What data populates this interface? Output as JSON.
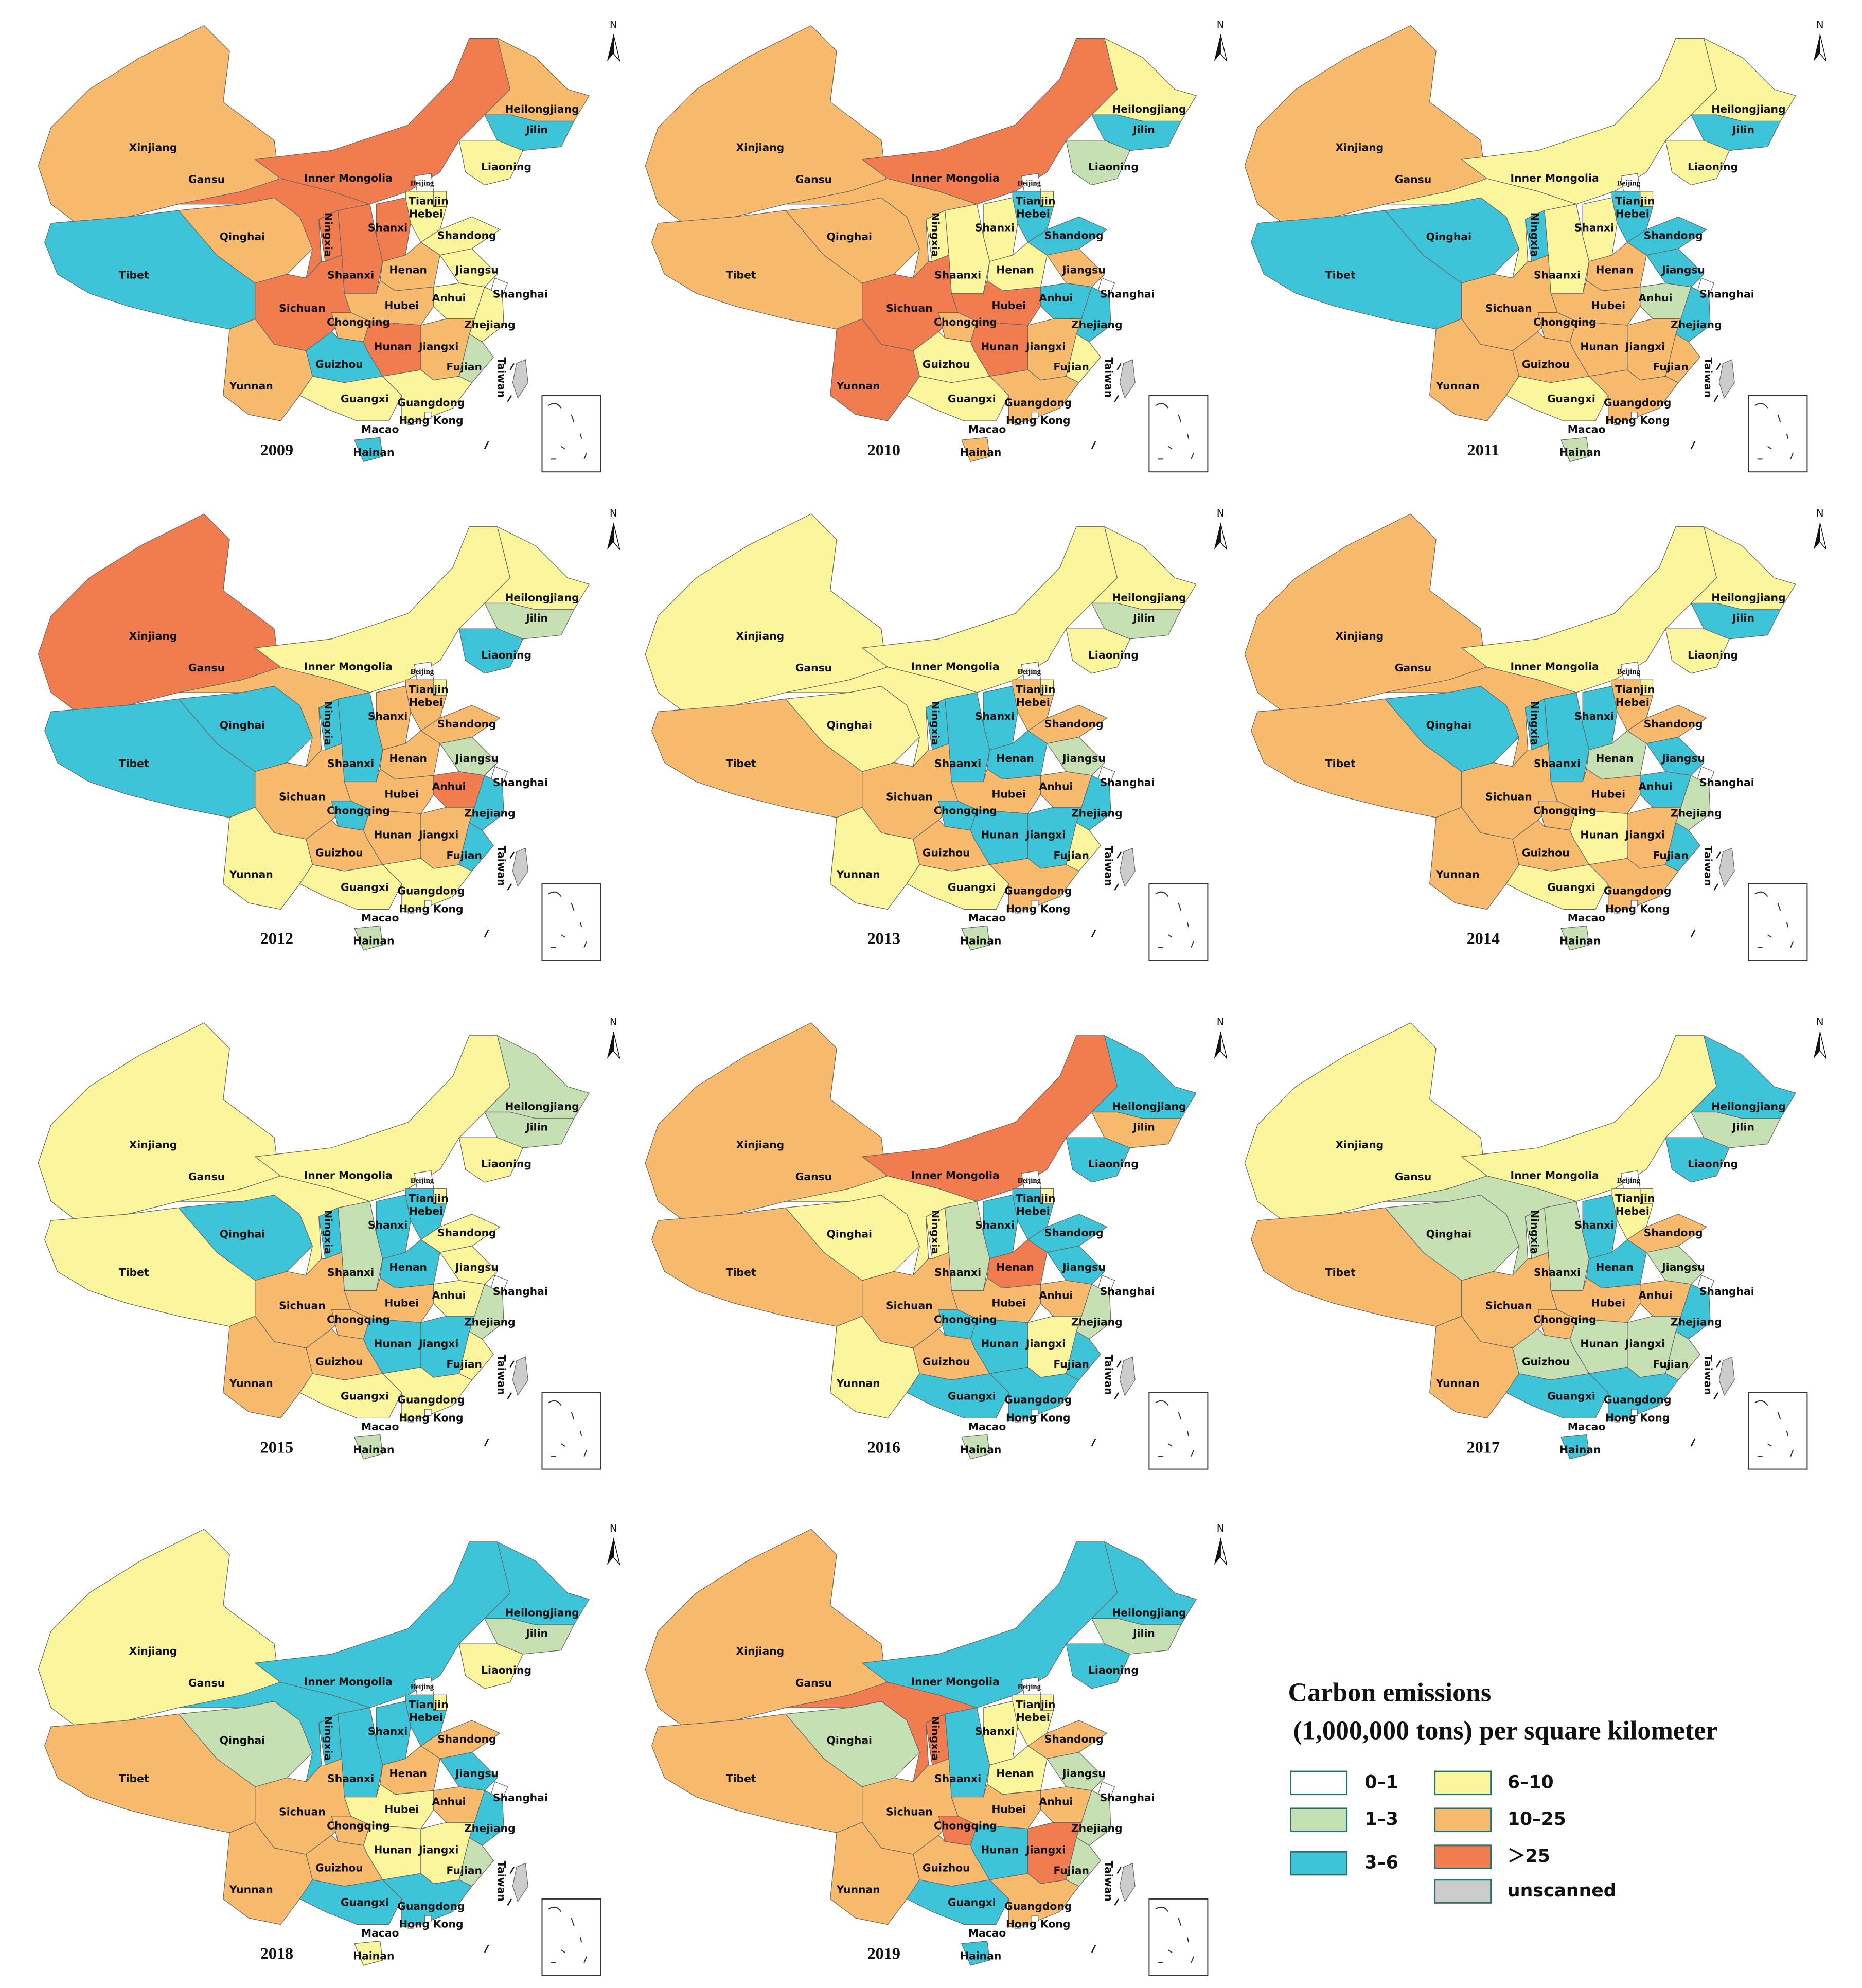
{
  "north": "N",
  "provinces": [
    "Xinjiang",
    "Tibet",
    "Qinghai",
    "Gansu",
    "Inner Mongolia",
    "Heilongjiang",
    "Jilin",
    "Liaoning",
    "Beijing",
    "Tianjin",
    "Hebei",
    "Shanxi",
    "Shandong",
    "Ningxia",
    "Shaanxi",
    "Henan",
    "Jiangsu",
    "Shanghai",
    "Anhui",
    "Hubei",
    "Sichuan",
    "Chongqing",
    "Zhejiang",
    "Hunan",
    "Jiangxi",
    "Fujian",
    "Guizhou",
    "Yunnan",
    "Guangxi",
    "Guangdong",
    "Hainan",
    "Hong Kong",
    "Macao",
    "Taiwan"
  ],
  "maps": [
    {
      "year": "2009",
      "colors": [
        "#f8bb6e",
        "#3ec4d8",
        "#f8bb6e",
        "#f17c50",
        "#f17c50",
        "#f8bb6e",
        "#3ec4d8",
        "#fbf69c",
        "#ffffff",
        "#fbf69c",
        "#fbf69c",
        "#f17c50",
        "#fbf69c",
        "#f17c50",
        "#f17c50",
        "#f8bb6e",
        "#fbf69c",
        "#ffffff",
        "#fbf69c",
        "#f8bb6e",
        "#f17c50",
        "#f8bb6e",
        "#fbf69c",
        "#f17c50",
        "#f8bb6e",
        "#c6e0b4",
        "#3ec4d8",
        "#f8bb6e",
        "#fbf69c",
        "#fbf69c",
        "#3ec4d8",
        "#ffffff",
        "#ffffff",
        "#cccccc"
      ]
    },
    {
      "year": "2010",
      "colors": [
        "#f8bb6e",
        "#f8bb6e",
        "#f8bb6e",
        "#f8bb6e",
        "#f17c50",
        "#fbf69c",
        "#3ec4d8",
        "#c6e0b4",
        "#ffffff",
        "#fbf69c",
        "#3ec4d8",
        "#fbf69c",
        "#3ec4d8",
        "#fbf69c",
        "#fbf69c",
        "#fbf69c",
        "#f8bb6e",
        "#ffffff",
        "#3ec4d8",
        "#f17c50",
        "#f17c50",
        "#f8bb6e",
        "#3ec4d8",
        "#f17c50",
        "#f8bb6e",
        "#fbf69c",
        "#fbf69c",
        "#f17c50",
        "#fbf69c",
        "#f8bb6e",
        "#f8bb6e",
        "#ffffff",
        "#ffffff",
        "#cccccc"
      ]
    },
    {
      "year": "2011",
      "colors": [
        "#f8bb6e",
        "#3ec4d8",
        "#3ec4d8",
        "#fbf69c",
        "#fbf69c",
        "#fbf69c",
        "#3ec4d8",
        "#fbf69c",
        "#ffffff",
        "#fbf69c",
        "#3ec4d8",
        "#fbf69c",
        "#3ec4d8",
        "#3ec4d8",
        "#fbf69c",
        "#f8bb6e",
        "#3ec4d8",
        "#ffffff",
        "#c6e0b4",
        "#f8bb6e",
        "#f8bb6e",
        "#f8bb6e",
        "#3ec4d8",
        "#f8bb6e",
        "#f8bb6e",
        "#f8bb6e",
        "#f8bb6e",
        "#f8bb6e",
        "#fbf69c",
        "#f8bb6e",
        "#c6e0b4",
        "#ffffff",
        "#ffffff",
        "#cccccc"
      ]
    },
    {
      "year": "2012",
      "colors": [
        "#f17c50",
        "#3ec4d8",
        "#3ec4d8",
        "#f8bb6e",
        "#fbf69c",
        "#fbf69c",
        "#c6e0b4",
        "#3ec4d8",
        "#ffffff",
        "#fbf69c",
        "#f8bb6e",
        "#f8bb6e",
        "#f8bb6e",
        "#3ec4d8",
        "#3ec4d8",
        "#f8bb6e",
        "#c6e0b4",
        "#ffffff",
        "#f17c50",
        "#f8bb6e",
        "#f8bb6e",
        "#3ec4d8",
        "#3ec4d8",
        "#f8bb6e",
        "#f8bb6e",
        "#3ec4d8",
        "#f8bb6e",
        "#fbf69c",
        "#fbf69c",
        "#fbf69c",
        "#c6e0b4",
        "#ffffff",
        "#ffffff",
        "#cccccc"
      ]
    },
    {
      "year": "2013",
      "colors": [
        "#fbf69c",
        "#f8bb6e",
        "#fbf69c",
        "#fbf69c",
        "#fbf69c",
        "#fbf69c",
        "#c6e0b4",
        "#fbf69c",
        "#ffffff",
        "#fbf69c",
        "#f8bb6e",
        "#3ec4d8",
        "#f8bb6e",
        "#3ec4d8",
        "#3ec4d8",
        "#3ec4d8",
        "#c6e0b4",
        "#ffffff",
        "#f8bb6e",
        "#f8bb6e",
        "#f8bb6e",
        "#3ec4d8",
        "#3ec4d8",
        "#3ec4d8",
        "#3ec4d8",
        "#fbf69c",
        "#f8bb6e",
        "#fbf69c",
        "#fbf69c",
        "#f8bb6e",
        "#c6e0b4",
        "#ffffff",
        "#ffffff",
        "#cccccc"
      ]
    },
    {
      "year": "2014",
      "colors": [
        "#f8bb6e",
        "#f8bb6e",
        "#3ec4d8",
        "#f8bb6e",
        "#fbf69c",
        "#fbf69c",
        "#3ec4d8",
        "#fbf69c",
        "#ffffff",
        "#fbf69c",
        "#f8bb6e",
        "#3ec4d8",
        "#f8bb6e",
        "#3ec4d8",
        "#3ec4d8",
        "#c6e0b4",
        "#3ec4d8",
        "#ffffff",
        "#3ec4d8",
        "#f8bb6e",
        "#f8bb6e",
        "#f8bb6e",
        "#c6e0b4",
        "#fbf69c",
        "#f8bb6e",
        "#3ec4d8",
        "#f8bb6e",
        "#f8bb6e",
        "#fbf69c",
        "#f8bb6e",
        "#c6e0b4",
        "#ffffff",
        "#ffffff",
        "#cccccc"
      ]
    },
    {
      "year": "2015",
      "colors": [
        "#fbf69c",
        "#fbf69c",
        "#3ec4d8",
        "#fbf69c",
        "#fbf69c",
        "#c6e0b4",
        "#c6e0b4",
        "#fbf69c",
        "#ffffff",
        "#fbf69c",
        "#3ec4d8",
        "#3ec4d8",
        "#fbf69c",
        "#3ec4d8",
        "#c6e0b4",
        "#3ec4d8",
        "#fbf69c",
        "#ffffff",
        "#fbf69c",
        "#f8bb6e",
        "#f8bb6e",
        "#f8bb6e",
        "#c6e0b4",
        "#3ec4d8",
        "#3ec4d8",
        "#fbf69c",
        "#f8bb6e",
        "#f8bb6e",
        "#fbf69c",
        "#fbf69c",
        "#c6e0b4",
        "#ffffff",
        "#ffffff",
        "#cccccc"
      ]
    },
    {
      "year": "2016",
      "colors": [
        "#f8bb6e",
        "#f8bb6e",
        "#fbf69c",
        "#fbf69c",
        "#f17c50",
        "#3ec4d8",
        "#f8bb6e",
        "#3ec4d8",
        "#ffffff",
        "#fbf69c",
        "#3ec4d8",
        "#3ec4d8",
        "#3ec4d8",
        "#fbf69c",
        "#c6e0b4",
        "#f17c50",
        "#3ec4d8",
        "#ffffff",
        "#f8bb6e",
        "#f8bb6e",
        "#f8bb6e",
        "#3ec4d8",
        "#c6e0b4",
        "#3ec4d8",
        "#fbf69c",
        "#3ec4d8",
        "#f8bb6e",
        "#fbf69c",
        "#3ec4d8",
        "#3ec4d8",
        "#c6e0b4",
        "#ffffff",
        "#ffffff",
        "#cccccc"
      ]
    },
    {
      "year": "2017",
      "colors": [
        "#fbf69c",
        "#f8bb6e",
        "#c6e0b4",
        "#c6e0b4",
        "#fbf69c",
        "#3ec4d8",
        "#c6e0b4",
        "#3ec4d8",
        "#ffffff",
        "#fbf69c",
        "#fbf69c",
        "#3ec4d8",
        "#f8bb6e",
        "#c6e0b4",
        "#c6e0b4",
        "#3ec4d8",
        "#c6e0b4",
        "#ffffff",
        "#f8bb6e",
        "#f8bb6e",
        "#f8bb6e",
        "#f8bb6e",
        "#3ec4d8",
        "#c6e0b4",
        "#c6e0b4",
        "#c6e0b4",
        "#c6e0b4",
        "#f8bb6e",
        "#3ec4d8",
        "#3ec4d8",
        "#3ec4d8",
        "#ffffff",
        "#ffffff",
        "#cccccc"
      ]
    },
    {
      "year": "2018",
      "colors": [
        "#fbf69c",
        "#f8bb6e",
        "#c6e0b4",
        "#3ec4d8",
        "#3ec4d8",
        "#3ec4d8",
        "#c6e0b4",
        "#fbf69c",
        "#ffffff",
        "#fbf69c",
        "#3ec4d8",
        "#3ec4d8",
        "#f8bb6e",
        "#3ec4d8",
        "#3ec4d8",
        "#f8bb6e",
        "#3ec4d8",
        "#ffffff",
        "#f8bb6e",
        "#fbf69c",
        "#f8bb6e",
        "#f8bb6e",
        "#3ec4d8",
        "#fbf69c",
        "#fbf69c",
        "#c6e0b4",
        "#f8bb6e",
        "#f8bb6e",
        "#3ec4d8",
        "#3ec4d8",
        "#fbf69c",
        "#ffffff",
        "#ffffff",
        "#cccccc"
      ]
    },
    {
      "year": "2019",
      "colors": [
        "#f8bb6e",
        "#f8bb6e",
        "#c6e0b4",
        "#f17c50",
        "#3ec4d8",
        "#3ec4d8",
        "#c6e0b4",
        "#3ec4d8",
        "#ffffff",
        "#fbf69c",
        "#fbf69c",
        "#fbf69c",
        "#f8bb6e",
        "#f17c50",
        "#3ec4d8",
        "#fbf69c",
        "#c6e0b4",
        "#ffffff",
        "#f8bb6e",
        "#f8bb6e",
        "#f8bb6e",
        "#f17c50",
        "#c6e0b4",
        "#3ec4d8",
        "#f17c50",
        "#c6e0b4",
        "#f8bb6e",
        "#f8bb6e",
        "#3ec4d8",
        "#f8bb6e",
        "#3ec4d8",
        "#ffffff",
        "#ffffff",
        "#cccccc"
      ]
    }
  ],
  "legend": {
    "title": "Carbon emissions",
    "subtitle": "(1,000,000 tons) per square kilometer",
    "items": [
      {
        "label": "0–1",
        "color": "#ffffff"
      },
      {
        "label": "1–3",
        "color": "#c6e0b4"
      },
      {
        "label": "3–6",
        "color": "#3ec4d8"
      },
      {
        "label": "6–10",
        "color": "#fbf69c"
      },
      {
        "label": "10–25",
        "color": "#f8bb6e"
      },
      {
        "label": "＞25",
        "color": "#f17c50"
      },
      {
        "label": "unscanned",
        "color": "#cccccc"
      }
    ]
  }
}
